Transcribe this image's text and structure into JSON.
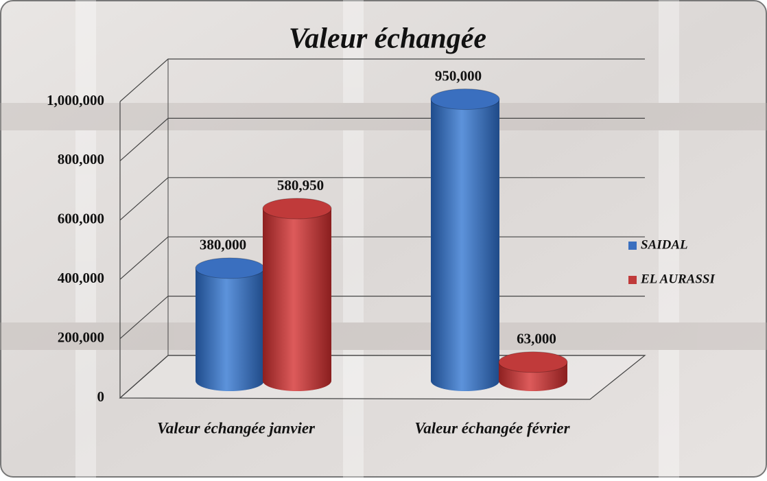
{
  "chart_data": {
    "type": "bar3d",
    "title": "Valeur échangée",
    "categories": [
      "Valeur échangée janvier",
      "Valeur échangée février"
    ],
    "series": [
      {
        "name": "SAIDAL",
        "color": "#3a6fbf",
        "values": [
          380000,
          950000
        ],
        "value_labels": [
          "380,000",
          "950,000"
        ]
      },
      {
        "name": "EL AURASSI",
        "color": "#c03a3a",
        "values": [
          580950,
          63000
        ],
        "value_labels": [
          "580,950",
          "63,000"
        ]
      }
    ],
    "ylim": [
      0,
      1000000
    ],
    "yticks": [
      0,
      {
        "value": 200000,
        "label": "200,000"
      },
      {
        "value": 400000,
        "label": "400,000"
      },
      {
        "value": 600000,
        "label": "600,000"
      },
      {
        "value": 800000,
        "label": "800,000"
      },
      {
        "value": 1000000,
        "label": "1,000,000"
      }
    ],
    "grid": true,
    "legend": "right"
  }
}
